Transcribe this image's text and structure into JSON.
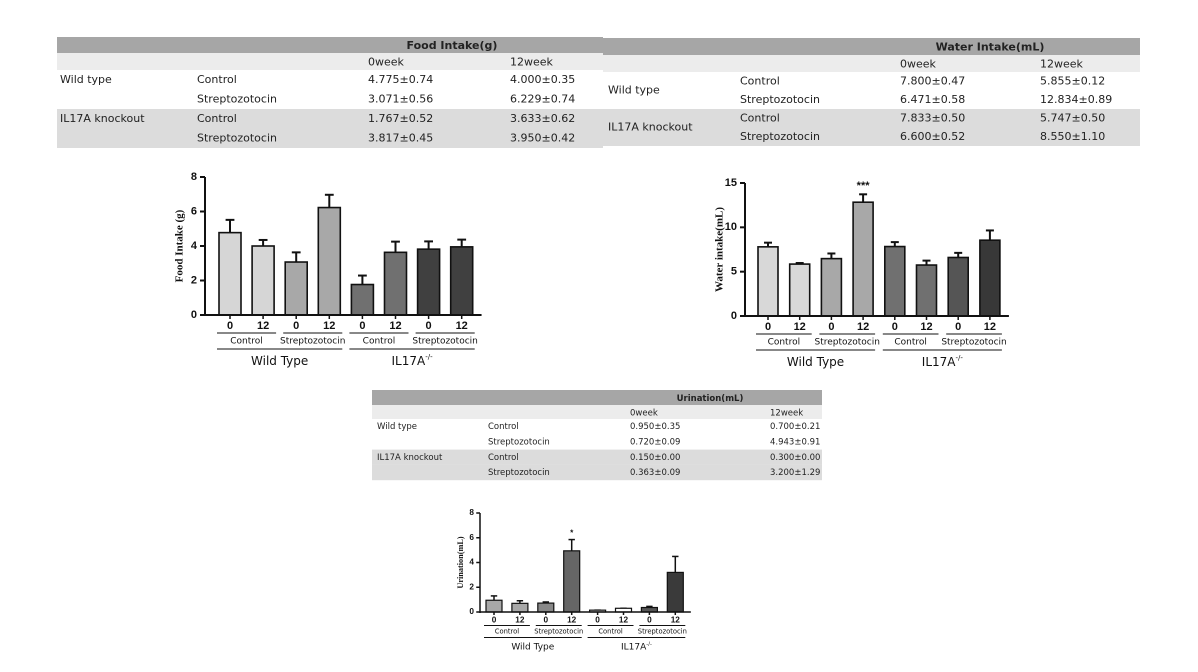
{
  "tables": [
    {
      "title": "Food Intake(g)",
      "columns": [
        "0week",
        "12week"
      ],
      "rows": [
        {
          "group": "Wild type",
          "label": "Control",
          "values": [
            "4.775±0.74",
            "4.000±0.35"
          ]
        },
        {
          "label": "Streptozotocin",
          "values": [
            "3.071±0.56",
            "6.229±0.74"
          ]
        },
        {
          "group": "IL17A knockout",
          "label": "Control",
          "values": [
            "1.767±0.52",
            "3.633±0.62"
          ]
        },
        {
          "label": "Streptozotocin",
          "values": [
            "3.817±0.45",
            "3.950±0.42"
          ]
        }
      ]
    },
    {
      "title": "Water Intake(mL)",
      "columns": [
        "0week",
        "12week"
      ],
      "rows": [
        {
          "group": "Wild type",
          "label": "Control",
          "values": [
            "7.800±0.47",
            "5.855±0.12"
          ]
        },
        {
          "label": "Streptozotocin",
          "values": [
            "6.471±0.58",
            "12.834±0.89"
          ]
        },
        {
          "group": "IL17A knockout",
          "label": "Control",
          "values": [
            "7.833±0.50",
            "5.747±0.50"
          ]
        },
        {
          "label": "Streptozotocin",
          "values": [
            "6.600±0.52",
            "8.550±1.10"
          ]
        }
      ]
    },
    {
      "title": "Urination(mL)",
      "columns": [
        "0week",
        "12week"
      ],
      "rows": [
        {
          "group": "Wild type",
          "label": "Control",
          "values": [
            "0.950±0.35",
            "0.700±0.21"
          ]
        },
        {
          "label": "Streptozotocin",
          "values": [
            "0.720±0.09",
            "4.943±0.91"
          ]
        },
        {
          "group": "IL17A knockout",
          "label": "Control",
          "values": [
            "0.150±0.00",
            "0.300±0.00"
          ]
        },
        {
          "label": "Streptozotocin",
          "values": [
            "0.363±0.09",
            "3.200±1.29"
          ]
        }
      ]
    }
  ],
  "chart_data": [
    {
      "type": "bar",
      "y_label": "Food Intake (g)",
      "categories": [
        "0",
        "12",
        "0",
        "12",
        "0",
        "12",
        "0",
        "12"
      ],
      "values": [
        4.775,
        4.0,
        3.071,
        6.229,
        1.767,
        3.633,
        3.817,
        3.95
      ],
      "errors": [
        0.74,
        0.35,
        0.56,
        0.74,
        0.52,
        0.62,
        0.45,
        0.42
      ],
      "colors": [
        "#d6d6d6",
        "#d6d6d6",
        "#a8a8a8",
        "#a8a8a8",
        "#707070",
        "#707070",
        "#404040",
        "#404040"
      ],
      "significance": [
        null,
        null,
        null,
        null,
        null,
        null,
        null,
        null
      ],
      "groups": [
        "Control",
        "Streptozotocin",
        "Control",
        "Streptozotocin"
      ],
      "supergroups": [
        {
          "name": "Wild Type"
        },
        {
          "name": "IL17A",
          "superscript": "-/-"
        }
      ],
      "ylim": [
        0,
        8
      ],
      "yticks": [
        0,
        2,
        4,
        6,
        8
      ]
    },
    {
      "type": "bar",
      "y_label": "Water intake(mL)",
      "categories": [
        "0",
        "12",
        "0",
        "12",
        "0",
        "12",
        "0",
        "12"
      ],
      "values": [
        7.8,
        5.855,
        6.471,
        12.834,
        7.833,
        5.747,
        6.6,
        8.55
      ],
      "errors": [
        0.47,
        0.12,
        0.58,
        0.89,
        0.5,
        0.5,
        0.52,
        1.1
      ],
      "colors": [
        "#d8d8d8",
        "#d8d8d8",
        "#a8a8a8",
        "#a8a8a8",
        "#707070",
        "#707070",
        "#555555",
        "#383838"
      ],
      "significance": [
        null,
        null,
        null,
        "***",
        null,
        null,
        null,
        null
      ],
      "groups": [
        "Control",
        "Streptozotocin",
        "Control",
        "Streptozotocin"
      ],
      "supergroups": [
        {
          "name": "Wild Type"
        },
        {
          "name": "IL17A",
          "superscript": "-/-"
        }
      ],
      "ylim": [
        0,
        15
      ],
      "yticks": [
        0,
        5,
        10,
        15
      ]
    },
    {
      "type": "bar",
      "y_label": "Urination(mL)",
      "categories": [
        "0",
        "12",
        "0",
        "12",
        "0",
        "12",
        "0",
        "12"
      ],
      "values": [
        0.95,
        0.7,
        0.72,
        4.943,
        0.15,
        0.3,
        0.363,
        3.2
      ],
      "errors": [
        0.35,
        0.21,
        0.09,
        0.91,
        0.0,
        0.0,
        0.09,
        1.29
      ],
      "colors": [
        "#a8a8a8",
        "#a8a8a8",
        "#888888",
        "#666666",
        "#ececec",
        "#ffffff",
        "#555555",
        "#3a3a3a"
      ],
      "significance": [
        null,
        null,
        null,
        "*",
        null,
        null,
        null,
        null
      ],
      "groups": [
        "Control",
        "Streptozotocin",
        "Control",
        "Streptozotocin"
      ],
      "supergroups": [
        {
          "name": "Wild Type"
        },
        {
          "name": "IL17A",
          "superscript": "-/-"
        }
      ],
      "ylim": [
        0,
        8
      ],
      "yticks": [
        0,
        2,
        4,
        6,
        8
      ]
    }
  ]
}
